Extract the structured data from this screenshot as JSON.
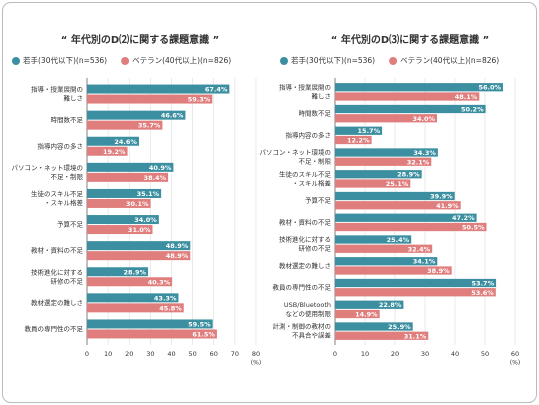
{
  "chart_data": [
    {
      "type": "bar",
      "orientation": "horizontal",
      "title": "“ 年代別のD⑵に関する課題意識 ”",
      "categories": [
        "指導・授業展開の\n難しさ",
        "時間数不足",
        "指導内容の多さ",
        "パソコン・ネット環境の\n不足・制限",
        "生徒のスキル不足\n・スキル格差",
        "予算不足",
        "教材・資料の不足",
        "技術進化に対する\n研修の不足",
        "教材選定の難しさ",
        "教員の専門性の不足"
      ],
      "series": [
        {
          "name": "若手(30代以下)(n=536)",
          "color": "#3b8fa1",
          "values": [
            67.4,
            46.6,
            24.6,
            40.9,
            35.1,
            34.0,
            48.9,
            28.9,
            43.3,
            59.5
          ],
          "value_labels": [
            "67.4%",
            "46.6%",
            "24.6%",
            "40.9%",
            "35.1%",
            "34.0%",
            "48.9%",
            "28.9%",
            "43.3%",
            "59.5%"
          ]
        },
        {
          "name": "ベテラン(40代以上)(n=826)",
          "color": "#e07e7e",
          "values": [
            59.3,
            35.7,
            19.2,
            38.4,
            30.1,
            31.0,
            48.9,
            40.3,
            45.8,
            61.5
          ],
          "value_labels": [
            "59.3%",
            "35.7%",
            "19.2%",
            "38.4%",
            "30.1%",
            "31.0%",
            "48.9%",
            "40.3%",
            "45.8%",
            "61.5%"
          ]
        }
      ],
      "xlim": [
        0,
        80
      ],
      "xticks": [
        0,
        10,
        20,
        30,
        40,
        50,
        60,
        70,
        80
      ],
      "unit": "(%)",
      "grid": true
    },
    {
      "type": "bar",
      "orientation": "horizontal",
      "title": "“ 年代別のD⑶に関する課題意識 ”",
      "categories": [
        "指導・授業展開の\n難しさ",
        "時間数不足",
        "指導内容の多さ",
        "パソコン・ネット環境の\n不足・制限",
        "生徒のスキル不足\n・スキル格差",
        "予算不足",
        "教材・資料の不足",
        "技術進化に対する\n研修の不足",
        "教材選定の難しさ",
        "教員の専門性の不足",
        "USB/Bluetooth\nなどの使用制限",
        "計測・制御の教材の\n不具合や誤差"
      ],
      "series": [
        {
          "name": "若手(30代以下)(n=536)",
          "color": "#3b8fa1",
          "values": [
            56.0,
            50.2,
            15.7,
            34.3,
            28.9,
            39.9,
            47.2,
            25.4,
            34.1,
            53.7,
            22.8,
            25.9
          ],
          "value_labels": [
            "56.0%",
            "50.2%",
            "15.7%",
            "34.3%",
            "28.9%",
            "39.9%",
            "47.2%",
            "25.4%",
            "34.1%",
            "53.7%",
            "22.8%",
            "25.9%"
          ]
        },
        {
          "name": "ベテラン(40代以上)(n=826)",
          "color": "#e07e7e",
          "values": [
            48.1,
            34.0,
            12.2,
            32.1,
            25.1,
            41.9,
            50.5,
            32.4,
            38.9,
            53.6,
            14.9,
            31.1
          ],
          "value_labels": [
            "48.1%",
            "34.0%",
            "12.2%",
            "32.1%",
            "25.1%",
            "41.9%",
            "50.5%",
            "32.4%",
            "38.9%",
            "53.6%",
            "14.9%",
            "31.1%"
          ]
        }
      ],
      "xlim": [
        0,
        60
      ],
      "xticks": [
        0,
        10,
        20,
        30,
        40,
        50,
        60
      ],
      "unit": "(%)",
      "grid": true
    }
  ]
}
